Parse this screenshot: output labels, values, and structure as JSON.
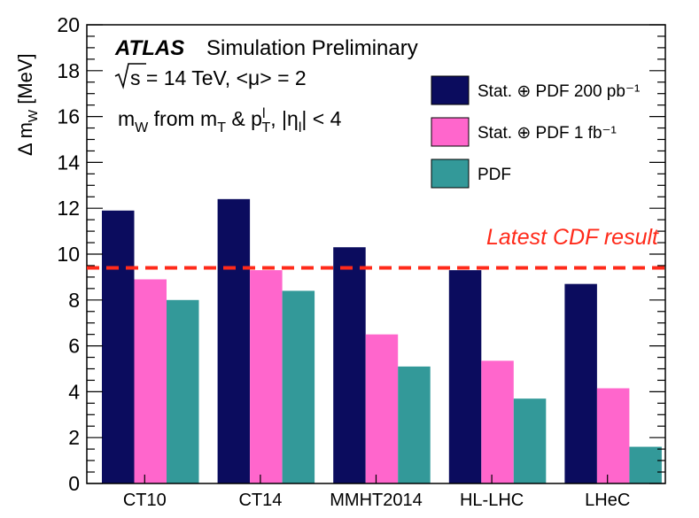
{
  "chart_data": {
    "type": "bar",
    "categories": [
      "CT10",
      "CT14",
      "MMHT2014",
      "HL-LHC",
      "LHeC"
    ],
    "series": [
      {
        "name": "Stat. ⊕ PDF 200 pb⁻¹",
        "color": "#0b0c5e",
        "values": [
          11.9,
          12.4,
          10.3,
          9.3,
          8.7
        ]
      },
      {
        "name": "Stat. ⊕ PDF 1 fb⁻¹",
        "color": "#ff66cc",
        "values": [
          8.9,
          9.3,
          6.5,
          5.35,
          4.15
        ]
      },
      {
        "name": "PDF",
        "color": "#339999",
        "values": [
          8.0,
          8.4,
          5.1,
          3.7,
          1.6
        ]
      }
    ],
    "ylim": [
      0,
      20
    ],
    "yticks": [
      0,
      2,
      4,
      6,
      8,
      10,
      12,
      14,
      16,
      18,
      20
    ],
    "ylabel": "Δ m_W [MeV]",
    "reference_line": {
      "label": "Latest CDF result",
      "value": 9.4,
      "color": "#ff2a1a"
    },
    "annotations": {
      "atlas": "ATLAS",
      "status": "Simulation Preliminary",
      "energy": "√s = 14 TeV, <μ> = 2",
      "method": "m_W from m_T & p_T^l, |η_l| < 4"
    },
    "legend_position": "top-right",
    "grid": false
  }
}
